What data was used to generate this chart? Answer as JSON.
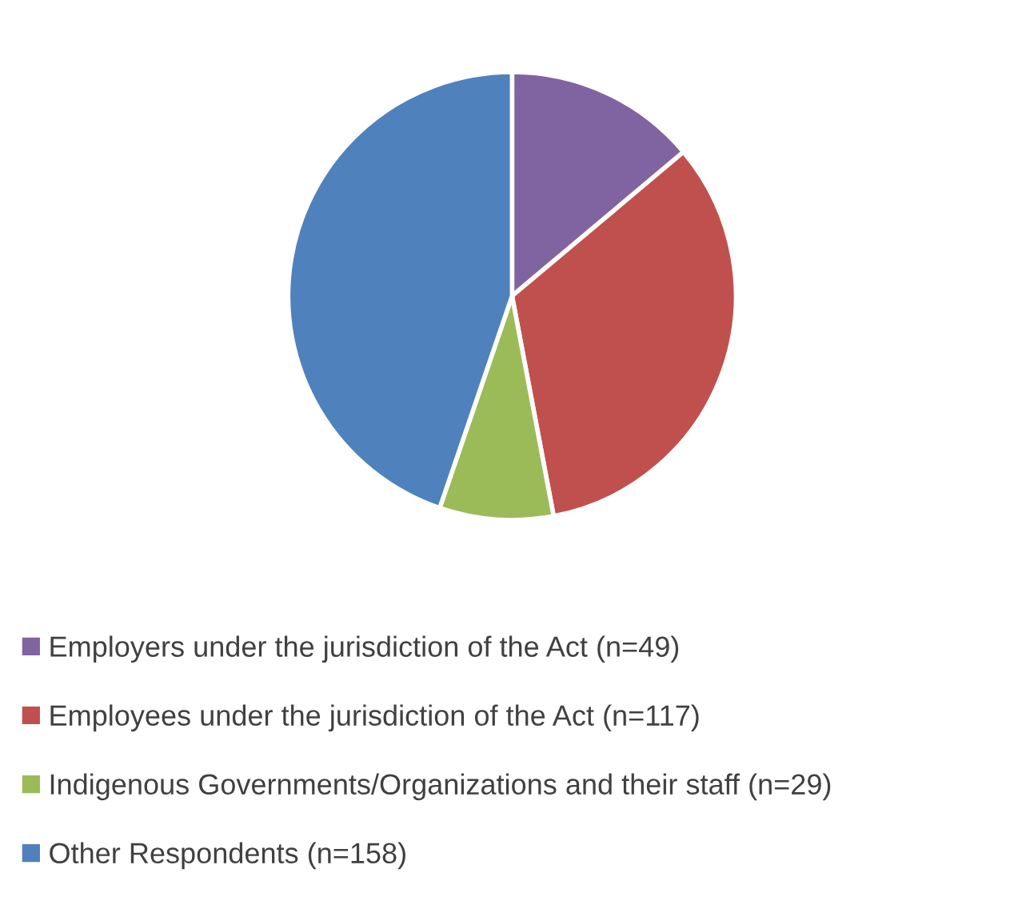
{
  "chart_data": {
    "type": "pie",
    "categories": [
      "Employers under the jurisdiction of the Act (n=49)",
      "Employees under the jurisdiction of the Act (n=117)",
      "Indigenous Governments/Organizations and their staff (n=29)",
      "Other Respondents (n=158)"
    ],
    "values": [
      49,
      117,
      29,
      158
    ],
    "colors": [
      "#8064a2",
      "#c0504d",
      "#9bbb59",
      "#4f81bd"
    ],
    "legend": "bottom"
  }
}
